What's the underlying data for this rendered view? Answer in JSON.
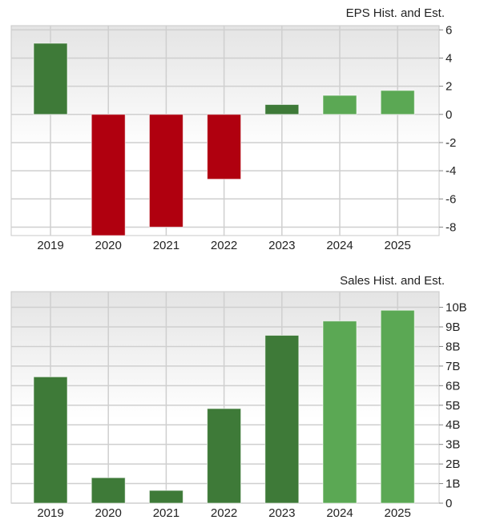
{
  "chart_data": [
    {
      "type": "bar",
      "title": "EPS Hist. and Est.",
      "categories": [
        "2019",
        "2020",
        "2021",
        "2022",
        "2023",
        "2024",
        "2025"
      ],
      "values": [
        5.05,
        -8.6,
        -8.0,
        -4.6,
        0.7,
        1.35,
        1.7
      ],
      "bar_kind": [
        "historical",
        "historical",
        "historical",
        "historical",
        "historical",
        "estimate",
        "estimate"
      ],
      "yticks": [
        6,
        4,
        2,
        0,
        -2,
        -4,
        -6,
        -8
      ],
      "ytick_labels": [
        "6",
        "4",
        "2",
        "0",
        "-2",
        "-4",
        "-6",
        "-8"
      ],
      "ylim": [
        -8.6,
        6.3
      ],
      "axis_side": "right",
      "grid": true
    },
    {
      "type": "bar",
      "title": "Sales Hist. and Est.",
      "categories": [
        "2019",
        "2020",
        "2021",
        "2022",
        "2023",
        "2024",
        "2025"
      ],
      "values": [
        6.45,
        1.3,
        0.65,
        4.83,
        8.57,
        9.3,
        9.85
      ],
      "unit": "B",
      "bar_kind": [
        "historical",
        "historical",
        "historical",
        "historical",
        "historical",
        "estimate",
        "estimate"
      ],
      "yticks": [
        0,
        1,
        2,
        3,
        4,
        5,
        6,
        7,
        8,
        9,
        10
      ],
      "ytick_labels": [
        "0",
        "1B",
        "2B",
        "3B",
        "4B",
        "5B",
        "6B",
        "7B",
        "8B",
        "9B",
        "10B"
      ],
      "ylim": [
        0,
        10.8
      ],
      "axis_side": "right",
      "grid": true
    }
  ],
  "colors": {
    "historical_positive": "#3e7a38",
    "estimate_positive": "#5ba854",
    "negative": "#b0000f",
    "grid": "#cfcfcf"
  }
}
